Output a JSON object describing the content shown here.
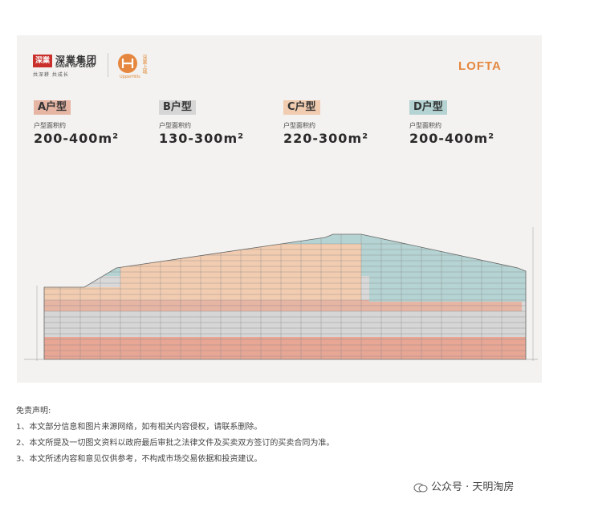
{
  "brand": {
    "seal_text": "深業",
    "group_name": "深業集团",
    "group_en": "SHUM YIP GROUP",
    "slogan": "共深耕 共成长",
    "upperhills_caption": "UpperHills",
    "upperhills_vertical": "深業上城",
    "project_logo": "LOFTA"
  },
  "unit_types": [
    {
      "label": "A户型",
      "area_caption": "户型面积约",
      "area_range": "200-400m²",
      "color": "#e6b5a4"
    },
    {
      "label": "B户型",
      "area_caption": "户型面积约",
      "area_range": "130-300m²",
      "color": "#d6d6d6"
    },
    {
      "label": "C户型",
      "area_caption": "户型面积约",
      "area_range": "220-300m²",
      "color": "#f2ccb0"
    },
    {
      "label": "D户型",
      "area_caption": "户型面积约",
      "area_range": "200-400m²",
      "color": "#b4d3d2"
    }
  ],
  "disclaimer": {
    "title": "免责声明:",
    "lines": [
      "1、本文部分信息和图片来源网络，如有相关内容侵权，请联系删除。",
      "2、本文所提及一切图文资料以政府最后审批之法律文件及买卖双方签订的买卖合同为准。",
      "3、本文所述内容和意见仅供参考，不构成市场交易依据和投资建议。"
    ]
  },
  "watermark": {
    "text": "公众号 · 天明淘房"
  },
  "colors": {
    "accent": "#e5873f",
    "card_bg": "#f3f2f0"
  }
}
